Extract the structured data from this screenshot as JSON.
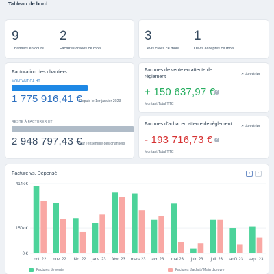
{
  "page": {
    "title": "Tableau de bord"
  },
  "stats_left": [
    {
      "value": "9",
      "label": "Chantiers en cours"
    },
    {
      "value": "2",
      "label": "Factures créées ce mois"
    }
  ],
  "stats_right": [
    {
      "value": "3",
      "label": "Devis créés ce mois"
    },
    {
      "value": "1",
      "label": "Devis acceptés ce mois"
    }
  ],
  "facturation": {
    "title": "Facturation des chantiers",
    "montant_label": "MONTANT CA HT",
    "montant_value": "1 775 916,41 €",
    "montant_note": "Depuis le 1er janvier 2023",
    "reste_label": "RESTE À FACTURER HT",
    "reste_value": "2 948 797,43 €",
    "reste_note": "Sur l'ensemble des chantiers",
    "colors": {
      "montant_bar": "#1e88e5",
      "reste_bar": "#b0bcc8",
      "amount_text": "#2c6fbf"
    }
  },
  "factures_vente": {
    "title": "Factures de vente en attente de règlement",
    "link": "Accéder",
    "amount": "+ 150 637,97 €",
    "help": "?",
    "caption": "Montant Total TTC",
    "color": "#27ae60"
  },
  "factures_achat": {
    "title": "Factures d'achat en attente de règlement",
    "link": "Accéder",
    "amount": "- 193 716,73 €",
    "help": "?",
    "caption": "Montant Total TTC",
    "color": "#d63031"
  },
  "chart_card": {
    "title": "Facturé vs. Dépensé",
    "prev": "‹",
    "next": "›"
  },
  "chart_data": {
    "type": "bar",
    "title": "Facturé vs. Dépensé",
    "categories": [
      "oct. 22",
      "nov. 22",
      "déc. 22",
      "janv. 23",
      "févr. 23",
      "mars 23",
      "avr. 23",
      "mai 23",
      "juin 23",
      "juil. 23",
      "août 23",
      "sept. 23"
    ],
    "y_ticks": [
      {
        "value": 0,
        "label": "0 €"
      },
      {
        "value": 150,
        "label": "150k €"
      },
      {
        "value": 414,
        "label": "414k €"
      }
    ],
    "ylim": [
      0,
      414
    ],
    "grid": true,
    "legend_position": "bottom",
    "series": [
      {
        "name": "Factures de vente",
        "color": "#4cd39a",
        "values": [
          400,
          300,
          210,
          180,
          360,
          355,
          200,
          295,
          30,
          200,
          150,
          160
        ]
      },
      {
        "name": "Factures d'achat / Main d'œuvre",
        "color": "#f9a8a4",
        "values": [
          310,
          205,
          130,
          230,
          335,
          255,
          220,
          65,
          60,
          200,
          55,
          95
        ]
      }
    ]
  }
}
